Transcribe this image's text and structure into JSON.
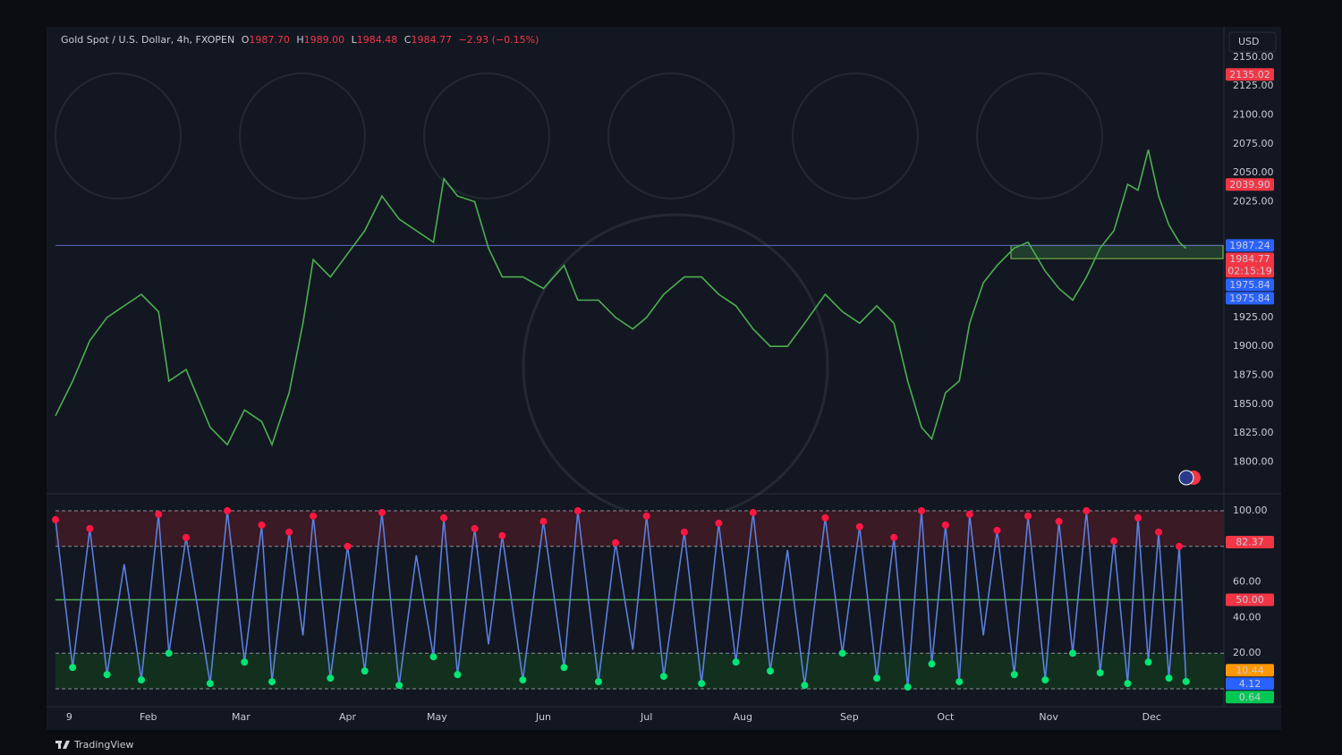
{
  "ui": {
    "symbol": "Gold Spot / U.S. Dollar, 4h, FXOPEN",
    "ohlc": [
      {
        "key": "O",
        "value": "1987.70"
      },
      {
        "key": "H",
        "value": "1989.00"
      },
      {
        "key": "L",
        "value": "1984.48"
      },
      {
        "key": "C",
        "value": "1984.77"
      }
    ],
    "change": "−2.93 (−0.15%)",
    "currency": "USD",
    "brand": "TradingView"
  },
  "chart_data": [
    {
      "type": "line",
      "color": "#4caf50",
      "x": [
        0,
        5,
        10,
        15,
        20,
        25,
        30,
        33,
        38,
        45,
        50,
        55,
        60,
        63,
        68,
        72,
        75,
        80,
        85,
        90,
        95,
        100,
        105,
        110,
        113,
        117,
        122,
        126,
        130,
        136,
        142,
        148,
        152,
        158,
        163,
        168,
        172,
        177,
        183,
        188,
        193,
        198,
        203,
        208,
        213,
        218,
        224,
        229,
        234,
        239,
        244,
        248,
        252,
        255,
        259,
        263,
        266,
        270,
        274,
        279,
        283,
        288,
        292,
        296,
        300,
        304,
        308,
        312,
        315,
        318,
        321,
        324,
        327,
        329
      ],
      "values": [
        1840,
        1870,
        1905,
        1925,
        1935,
        1945,
        1930,
        1870,
        1880,
        1830,
        1815,
        1845,
        1835,
        1815,
        1860,
        1920,
        1975,
        1960,
        1980,
        2000,
        2030,
        2010,
        2000,
        1990,
        2045,
        2030,
        2025,
        1985,
        1960,
        1960,
        1950,
        1970,
        1940,
        1940,
        1925,
        1915,
        1925,
        1945,
        1960,
        1960,
        1945,
        1935,
        1915,
        1900,
        1900,
        1920,
        1945,
        1930,
        1920,
        1935,
        1920,
        1870,
        1830,
        1820,
        1860,
        1870,
        1920,
        1955,
        1970,
        1985,
        1990,
        1965,
        1950,
        1940,
        1960,
        1985,
        2000,
        2040,
        2035,
        2070,
        2030,
        2005,
        1990,
        1984.77
      ],
      "xlim": [
        0,
        340
      ],
      "xticks": [
        {
          "value": 4,
          "label": "9"
        },
        {
          "value": 27,
          "label": "Feb"
        },
        {
          "value": 54,
          "label": "Mar"
        },
        {
          "value": 85,
          "label": "Apr"
        },
        {
          "value": 111,
          "label": "May"
        },
        {
          "value": 142,
          "label": "Jun"
        },
        {
          "value": 172,
          "label": "Jul"
        },
        {
          "value": 200,
          "label": "Aug"
        },
        {
          "value": 231,
          "label": "Sep"
        },
        {
          "value": 259,
          "label": "Oct"
        },
        {
          "value": 289,
          "label": "Nov"
        },
        {
          "value": 319,
          "label": "Dec"
        }
      ],
      "ylim": [
        1778,
        2153
      ],
      "yticks": [
        {
          "value": 1800,
          "label": "1800.00"
        },
        {
          "value": 1825,
          "label": "1825.00"
        },
        {
          "value": 1850,
          "label": "1850.00"
        },
        {
          "value": 1875,
          "label": "1875.00"
        },
        {
          "value": 1900,
          "label": "1900.00"
        },
        {
          "value": 1925,
          "label": "1925.00"
        },
        {
          "value": 2025,
          "label": "2025.00"
        },
        {
          "value": 2050,
          "label": "2050.00"
        },
        {
          "value": 2075,
          "label": "2075.00"
        },
        {
          "value": 2100,
          "label": "2100.00"
        },
        {
          "value": 2125,
          "label": "2125.00"
        },
        {
          "value": 2150,
          "label": "2150.00"
        }
      ],
      "price_labels": [
        {
          "value": 2135.02,
          "color": "#f23645"
        },
        {
          "value": 2039.9,
          "label": "2039.90",
          "color": "#f23645"
        },
        {
          "value": 1987.24,
          "color": "#2962ff"
        },
        {
          "value": 1984.77,
          "color": "#f23645",
          "countdown": "02:15:19"
        },
        {
          "value": 1975.84,
          "color": "#2962ff"
        },
        {
          "value": 1975.84,
          "color": "#2962ff"
        }
      ]
    },
    {
      "type": "line",
      "color": "#5b7fde",
      "x": [
        0,
        5,
        10,
        15,
        20,
        25,
        30,
        33,
        38,
        45,
        50,
        55,
        60,
        63,
        68,
        72,
        75,
        80,
        85,
        90,
        95,
        100,
        105,
        110,
        113,
        117,
        122,
        126,
        130,
        136,
        142,
        148,
        152,
        158,
        163,
        168,
        172,
        177,
        183,
        188,
        193,
        198,
        203,
        208,
        213,
        218,
        224,
        229,
        234,
        239,
        244,
        248,
        252,
        255,
        259,
        263,
        266,
        270,
        274,
        279,
        283,
        288,
        292,
        296,
        300,
        304,
        308,
        312,
        315,
        318,
        321,
        324,
        327,
        329
      ],
      "values": [
        95,
        12,
        90,
        8,
        70,
        5,
        98,
        20,
        85,
        3,
        100,
        15,
        92,
        4,
        88,
        30,
        97,
        6,
        80,
        10,
        99,
        2,
        75,
        18,
        96,
        8,
        90,
        25,
        86,
        5,
        94,
        12,
        100,
        4,
        82,
        22,
        97,
        7,
        88,
        3,
        93,
        15,
        99,
        10,
        78,
        2,
        96,
        20,
        91,
        6,
        85,
        1,
        100,
        14,
        92,
        4,
        98,
        30,
        89,
        8,
        97,
        5,
        94,
        20,
        100,
        9,
        83,
        3,
        96,
        15,
        88,
        6,
        80,
        4.12
      ],
      "xlim": [
        0,
        340
      ],
      "ylim": [
        -5,
        105.5
      ],
      "yticks": [
        {
          "value": 20,
          "label": "20.00"
        },
        {
          "value": 40,
          "label": "40.00"
        },
        {
          "value": 60,
          "label": "60.00"
        },
        {
          "value": 100,
          "label": "100.00"
        }
      ],
      "bands": [
        {
          "from": 80,
          "to": 100,
          "color": "#3a1a24"
        },
        {
          "from": 0,
          "to": 20,
          "color": "#13301f"
        }
      ],
      "midline": 50,
      "price_labels": [
        {
          "value": 82.37,
          "color": "#f23645"
        },
        {
          "value": 50,
          "label": "50.00",
          "color": "#f23645"
        },
        {
          "value": 10.44,
          "color": "#ff9800"
        },
        {
          "value": 4.12,
          "color": "#2962ff"
        },
        {
          "value": 0.64,
          "color": "#00c853"
        }
      ]
    }
  ]
}
